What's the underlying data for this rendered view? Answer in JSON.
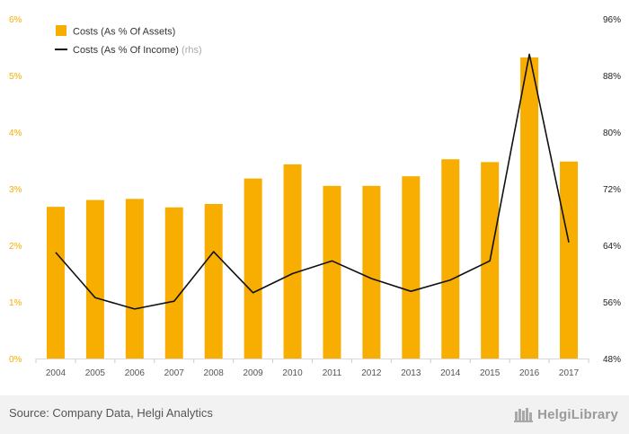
{
  "chart_data": {
    "type": "bar-line-combo",
    "categories": [
      "2004",
      "2005",
      "2006",
      "2007",
      "2008",
      "2009",
      "2010",
      "2011",
      "2012",
      "2013",
      "2014",
      "2015",
      "2016",
      "2017"
    ],
    "series": [
      {
        "name": "Costs (As % Of Assets)",
        "kind": "bar",
        "axis": "left",
        "values": [
          2.68,
          2.8,
          2.82,
          2.67,
          2.73,
          3.18,
          3.43,
          3.05,
          3.05,
          3.22,
          3.52,
          3.47,
          5.32,
          3.48
        ]
      },
      {
        "name": "Costs (As % Of Income)",
        "legend_suffix": "(rhs)",
        "kind": "line",
        "axis": "right",
        "values": [
          63.0,
          56.6,
          55.0,
          56.1,
          63.1,
          57.3,
          60.0,
          61.8,
          59.3,
          57.5,
          59.1,
          61.8,
          91.0,
          64.4
        ]
      }
    ],
    "left_axis": {
      "ticks": [
        "0%",
        "1%",
        "2%",
        "3%",
        "4%",
        "5%",
        "6%"
      ],
      "range": [
        0,
        6
      ]
    },
    "right_axis": {
      "ticks": [
        "48%",
        "56%",
        "64%",
        "72%",
        "80%",
        "88%",
        "96%"
      ],
      "range": [
        48,
        96
      ]
    },
    "legend_position": "top-left",
    "grid": false,
    "colors": {
      "bar": "#F7AE00",
      "line": "#111111",
      "left_tick": "#F7AE00",
      "right_tick": "#222222"
    }
  },
  "footer": {
    "source": "Source: Company Data, Helgi Analytics",
    "logo_text": "HelgiLibrary"
  }
}
